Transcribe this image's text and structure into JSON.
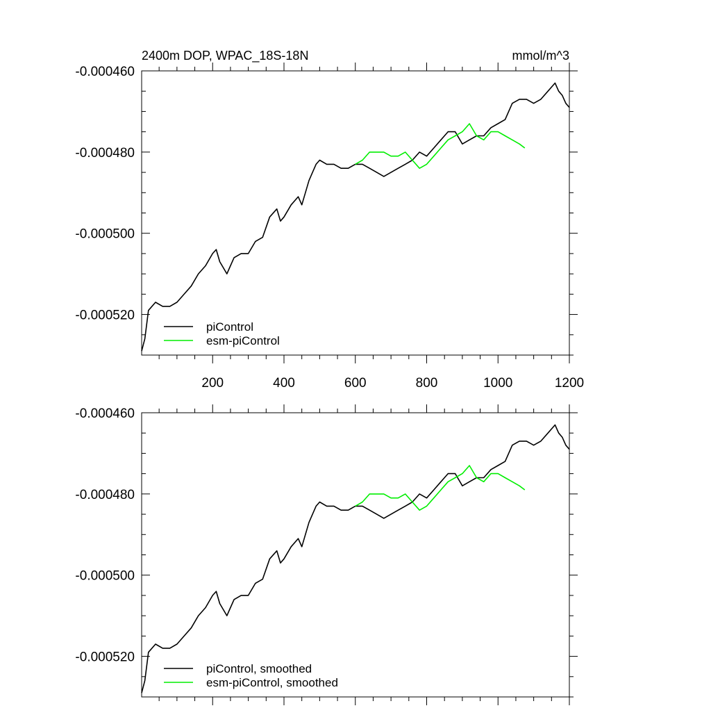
{
  "colors": {
    "piControl": "#000000",
    "esm_piControl": "#00ee00"
  },
  "chart_data": [
    {
      "type": "line",
      "title": "2400m DOP, WPAC_18S-18N",
      "units": "mmol/m^3",
      "xlim": [
        1,
        1200
      ],
      "ylim": [
        -0.00053,
        -0.00046
      ],
      "yticks": [
        "-0.000460",
        "-0.000480",
        "-0.000500",
        "-0.000520"
      ],
      "ytick_values": [
        -0.00046,
        -0.00048,
        -0.0005,
        -0.00052
      ],
      "xticks": [
        "200",
        "400",
        "600",
        "800",
        "1000",
        "1200"
      ],
      "xtick_values": [
        200,
        400,
        600,
        800,
        1000,
        1200
      ],
      "series": [
        {
          "name": "piControl",
          "color": "#000000",
          "x": [
            1,
            10,
            20,
            40,
            60,
            80,
            100,
            120,
            140,
            160,
            180,
            200,
            210,
            220,
            240,
            250,
            260,
            280,
            300,
            320,
            340,
            360,
            380,
            390,
            400,
            420,
            440,
            450,
            470,
            480,
            490,
            500,
            520,
            540,
            560,
            580,
            600,
            620,
            640,
            660,
            680,
            700,
            720,
            740,
            760,
            780,
            800,
            820,
            840,
            860,
            880,
            900,
            920,
            940,
            960,
            980,
            1000,
            1020,
            1040,
            1060,
            1080,
            1100,
            1120,
            1140,
            1160,
            1170,
            1180,
            1190,
            1200
          ],
          "y": [
            -0.000529,
            -0.000526,
            -0.000519,
            -0.000517,
            -0.000518,
            -0.000518,
            -0.000517,
            -0.000515,
            -0.000513,
            -0.00051,
            -0.000508,
            -0.000505,
            -0.000504,
            -0.000507,
            -0.00051,
            -0.000508,
            -0.000506,
            -0.000505,
            -0.000505,
            -0.000502,
            -0.000501,
            -0.000496,
            -0.000494,
            -0.000497,
            -0.000496,
            -0.000493,
            -0.000491,
            -0.000493,
            -0.000487,
            -0.000485,
            -0.000483,
            -0.000482,
            -0.000483,
            -0.000483,
            -0.000484,
            -0.000484,
            -0.000483,
            -0.000483,
            -0.000484,
            -0.000485,
            -0.000486,
            -0.000485,
            -0.000484,
            -0.000483,
            -0.000482,
            -0.00048,
            -0.000481,
            -0.000479,
            -0.000477,
            -0.000475,
            -0.000475,
            -0.000478,
            -0.000477,
            -0.000476,
            -0.000476,
            -0.000474,
            -0.000473,
            -0.000472,
            -0.000468,
            -0.000467,
            -0.000467,
            -0.000468,
            -0.000467,
            -0.000465,
            -0.000463,
            -0.000465,
            -0.000466,
            -0.000468,
            -0.000469
          ]
        },
        {
          "name": "esm-piControl",
          "color": "#00ee00",
          "x": [
            600,
            620,
            640,
            660,
            680,
            700,
            720,
            740,
            760,
            780,
            800,
            820,
            840,
            860,
            880,
            900,
            920,
            940,
            960,
            980,
            1000,
            1020,
            1040,
            1060,
            1075
          ],
          "y": [
            -0.000483,
            -0.000482,
            -0.00048,
            -0.00048,
            -0.00048,
            -0.000481,
            -0.000481,
            -0.00048,
            -0.000482,
            -0.000484,
            -0.000483,
            -0.000481,
            -0.000479,
            -0.000477,
            -0.000476,
            -0.000475,
            -0.000473,
            -0.000476,
            -0.000477,
            -0.000475,
            -0.000475,
            -0.000476,
            -0.000477,
            -0.000478,
            -0.000479
          ]
        }
      ],
      "legend": [
        "piControl",
        "esm-piControl"
      ],
      "legend_position": "bottom-left"
    },
    {
      "type": "line",
      "title": "",
      "xlim": [
        1,
        1200
      ],
      "ylim": [
        -0.00053,
        -0.00046
      ],
      "yticks": [
        "-0.000460",
        "-0.000480",
        "-0.000500",
        "-0.000520"
      ],
      "ytick_values": [
        -0.00046,
        -0.00048,
        -0.0005,
        -0.00052
      ],
      "xticks": [],
      "xtick_values": [
        200,
        400,
        600,
        800,
        1000,
        1200
      ],
      "series": [
        {
          "name": "piControl, smoothed",
          "color": "#000000",
          "x": [
            1,
            10,
            20,
            40,
            60,
            80,
            100,
            120,
            140,
            160,
            180,
            200,
            210,
            220,
            240,
            250,
            260,
            280,
            300,
            320,
            340,
            360,
            380,
            390,
            400,
            420,
            440,
            450,
            470,
            480,
            490,
            500,
            520,
            540,
            560,
            580,
            600,
            620,
            640,
            660,
            680,
            700,
            720,
            740,
            760,
            780,
            800,
            820,
            840,
            860,
            880,
            900,
            920,
            940,
            960,
            980,
            1000,
            1020,
            1040,
            1060,
            1080,
            1100,
            1120,
            1140,
            1160,
            1170,
            1180,
            1190,
            1200
          ],
          "y": [
            -0.000529,
            -0.000526,
            -0.000519,
            -0.000517,
            -0.000518,
            -0.000518,
            -0.000517,
            -0.000515,
            -0.000513,
            -0.00051,
            -0.000508,
            -0.000505,
            -0.000504,
            -0.000507,
            -0.00051,
            -0.000508,
            -0.000506,
            -0.000505,
            -0.000505,
            -0.000502,
            -0.000501,
            -0.000496,
            -0.000494,
            -0.000497,
            -0.000496,
            -0.000493,
            -0.000491,
            -0.000493,
            -0.000487,
            -0.000485,
            -0.000483,
            -0.000482,
            -0.000483,
            -0.000483,
            -0.000484,
            -0.000484,
            -0.000483,
            -0.000483,
            -0.000484,
            -0.000485,
            -0.000486,
            -0.000485,
            -0.000484,
            -0.000483,
            -0.000482,
            -0.00048,
            -0.000481,
            -0.000479,
            -0.000477,
            -0.000475,
            -0.000475,
            -0.000478,
            -0.000477,
            -0.000476,
            -0.000476,
            -0.000474,
            -0.000473,
            -0.000472,
            -0.000468,
            -0.000467,
            -0.000467,
            -0.000468,
            -0.000467,
            -0.000465,
            -0.000463,
            -0.000465,
            -0.000466,
            -0.000468,
            -0.000469
          ]
        },
        {
          "name": "esm-piControl, smoothed",
          "color": "#00ee00",
          "x": [
            600,
            620,
            640,
            660,
            680,
            700,
            720,
            740,
            760,
            780,
            800,
            820,
            840,
            860,
            880,
            900,
            920,
            940,
            960,
            980,
            1000,
            1020,
            1040,
            1060,
            1075
          ],
          "y": [
            -0.000483,
            -0.000482,
            -0.00048,
            -0.00048,
            -0.00048,
            -0.000481,
            -0.000481,
            -0.00048,
            -0.000482,
            -0.000484,
            -0.000483,
            -0.000481,
            -0.000479,
            -0.000477,
            -0.000476,
            -0.000475,
            -0.000473,
            -0.000476,
            -0.000477,
            -0.000475,
            -0.000475,
            -0.000476,
            -0.000477,
            -0.000478,
            -0.000479
          ]
        }
      ],
      "legend": [
        "piControl, smoothed",
        "esm-piControl, smoothed"
      ],
      "legend_position": "bottom-left"
    }
  ]
}
